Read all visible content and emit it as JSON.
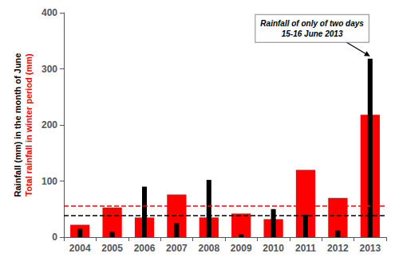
{
  "chart_data": {
    "type": "bar",
    "categories": [
      "2004",
      "2005",
      "2006",
      "2007",
      "2008",
      "2009",
      "2010",
      "2011",
      "2012",
      "2013"
    ],
    "series": [
      {
        "color": "#FF0000",
        "values": [
          22,
          53,
          35,
          76,
          35,
          42,
          32,
          120,
          70,
          218
        ],
        "mean": 55
      },
      {
        "color": "#000000",
        "values": [
          15,
          10,
          90,
          25,
          102,
          5,
          50,
          40,
          12,
          318
        ],
        "mean": 38
      }
    ],
    "ylabel": [
      {
        "text": "Rainfall (mm) in the month of June",
        "color": "#000000"
      },
      {
        "text": "Total rainfall in winter period (mm)",
        "color": "#FF0000"
      }
    ],
    "ylim": [
      0,
      400
    ],
    "yticks": [
      0,
      100,
      200,
      300,
      400
    ],
    "annotations": [
      {
        "text": "Rainfall of only of two days\n15-16 June 2013",
        "x": "2013",
        "y": 318
      }
    ],
    "grid": false
  }
}
